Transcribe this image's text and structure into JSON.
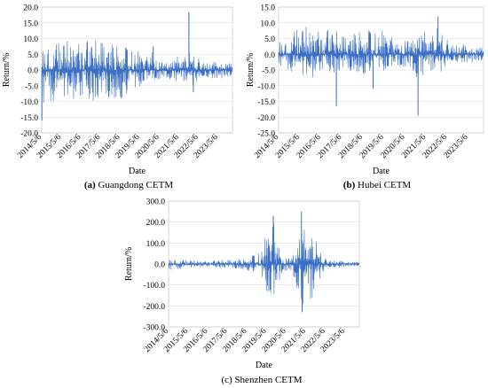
{
  "chart_data": [
    {
      "type": "line",
      "panel": "(a)",
      "caption_letter": "(a)",
      "caption_text": " Guangdong CETM",
      "xlabel": "Date",
      "ylabel": "Return/%",
      "x_ticks": [
        "2014/5/6",
        "2015/5/6",
        "2016/5/6",
        "2017/5/6",
        "2018/5/6",
        "2019/5/6",
        "2020/5/6",
        "2021/5/6",
        "2022/5/6",
        "2023/5/6"
      ],
      "y_ticks": [
        "20.0",
        "15.0",
        "10.0",
        "5.0",
        "0.0",
        "-5.0",
        "-10.0",
        "-15.0",
        "-20.0"
      ],
      "ylim": [
        -20,
        20
      ],
      "xlim": [
        "2014/5/6",
        "2024/1/31"
      ],
      "series_color": "#3a6fc4",
      "envelope": [
        {
          "x": "2014/5/6",
          "y": [
            -12,
            9
          ]
        },
        {
          "x": "2014/9/1",
          "y": [
            -10,
            9.5
          ]
        },
        {
          "x": "2015/1/1",
          "y": [
            -10,
            9.5
          ]
        },
        {
          "x": "2015/5/6",
          "y": [
            -10,
            9.5
          ]
        },
        {
          "x": "2016/1/1",
          "y": [
            -10,
            9.5
          ]
        },
        {
          "x": "2016/5/6",
          "y": [
            -10,
            9.5
          ]
        },
        {
          "x": "2017/1/1",
          "y": [
            -10,
            9.5
          ]
        },
        {
          "x": "2017/5/6",
          "y": [
            -10,
            9.5
          ]
        },
        {
          "x": "2018/1/1",
          "y": [
            -10,
            9.5
          ]
        },
        {
          "x": "2018/5/6",
          "y": [
            -10,
            9
          ]
        },
        {
          "x": "2019/1/1",
          "y": [
            -9,
            8
          ]
        },
        {
          "x": "2019/5/6",
          "y": [
            -6,
            6
          ]
        },
        {
          "x": "2019/9/1",
          "y": [
            -4,
            4
          ]
        },
        {
          "x": "2020/1/1",
          "y": [
            -3,
            7
          ]
        },
        {
          "x": "2020/5/6",
          "y": [
            -3,
            3
          ]
        },
        {
          "x": "2021/1/1",
          "y": [
            -3,
            4
          ]
        },
        {
          "x": "2021/5/6",
          "y": [
            -4,
            5
          ]
        },
        {
          "x": "2021/9/1",
          "y": [
            -4,
            6
          ]
        },
        {
          "x": "2022/1/1",
          "y": [
            -5,
            6
          ]
        },
        {
          "x": "2022/5/6",
          "y": [
            -4,
            4
          ]
        },
        {
          "x": "2023/1/1",
          "y": [
            -3,
            3
          ]
        },
        {
          "x": "2023/5/6",
          "y": [
            -3,
            3
          ]
        },
        {
          "x": "2024/1/31",
          "y": [
            -2,
            2
          ]
        }
      ],
      "spikes": [
        {
          "x": "2014/5/10",
          "y": -16
        },
        {
          "x": "2020/1/15",
          "y": 7.5
        },
        {
          "x": "2021/11/10",
          "y": 18.5
        },
        {
          "x": "2022/2/1",
          "y": -7
        }
      ]
    },
    {
      "type": "line",
      "panel": "(b)",
      "caption_letter": "(b)",
      "caption_text": " Hubei CETM",
      "xlabel": "Date",
      "ylabel": "Return/%",
      "x_ticks": [
        "2014/5/6",
        "2015/5/6",
        "2016/5/6",
        "2017/5/6",
        "2018/5/6",
        "2019/5/6",
        "2020/5/6",
        "2021/5/6",
        "2022/5/6",
        "2023/5/6"
      ],
      "y_ticks": [
        "15.0",
        "10.0",
        "5.0",
        "0.0",
        "-5.0",
        "-10.0",
        "-15.0",
        "-20.0",
        "-25.0"
      ],
      "ylim": [
        -25,
        15
      ],
      "xlim": [
        "2014/5/6",
        "2024/1/31"
      ],
      "series_color": "#3a6fc4",
      "envelope": [
        {
          "x": "2014/5/6",
          "y": [
            -4,
            6
          ]
        },
        {
          "x": "2014/9/1",
          "y": [
            -4,
            5
          ]
        },
        {
          "x": "2015/1/1",
          "y": [
            -6,
            8
          ]
        },
        {
          "x": "2015/5/6",
          "y": [
            -8,
            9
          ]
        },
        {
          "x": "2016/1/1",
          "y": [
            -8,
            9
          ]
        },
        {
          "x": "2016/5/6",
          "y": [
            -6,
            8
          ]
        },
        {
          "x": "2017/1/1",
          "y": [
            -6,
            8
          ]
        },
        {
          "x": "2017/5/6",
          "y": [
            -6,
            6
          ]
        },
        {
          "x": "2018/1/1",
          "y": [
            -6,
            8
          ]
        },
        {
          "x": "2018/5/6",
          "y": [
            -7,
            9
          ]
        },
        {
          "x": "2019/1/1",
          "y": [
            -6,
            9
          ]
        },
        {
          "x": "2019/5/6",
          "y": [
            -6,
            8
          ]
        },
        {
          "x": "2020/1/1",
          "y": [
            -4,
            4
          ]
        },
        {
          "x": "2020/5/6",
          "y": [
            -4,
            5
          ]
        },
        {
          "x": "2021/1/1",
          "y": [
            -8,
            9
          ]
        },
        {
          "x": "2021/5/6",
          "y": [
            -6,
            8
          ]
        },
        {
          "x": "2022/1/1",
          "y": [
            -6,
            9
          ]
        },
        {
          "x": "2022/5/6",
          "y": [
            -4,
            5
          ]
        },
        {
          "x": "2023/1/1",
          "y": [
            -3,
            4
          ]
        },
        {
          "x": "2023/5/6",
          "y": [
            -3,
            3
          ]
        },
        {
          "x": "2024/1/31",
          "y": [
            -2,
            2
          ]
        }
      ],
      "spikes": [
        {
          "x": "2017/2/1",
          "y": -16.5
        },
        {
          "x": "2020/12/20",
          "y": -19.5
        },
        {
          "x": "2021/12/1",
          "y": 12
        },
        {
          "x": "2018/11/1",
          "y": -11
        }
      ]
    },
    {
      "type": "line",
      "panel": "(c)",
      "caption_letter": "",
      "caption_text": "(c) Shenzhen CETM",
      "xlabel": "Date",
      "ylabel": "Return/%",
      "x_ticks": [
        "2014/5/6",
        "2015/5/6",
        "2016/5/6",
        "2017/5/6",
        "2018/5/6",
        "2019/5/6",
        "2020/5/6",
        "2021/5/6",
        "2022/5/6",
        "2023/5/6"
      ],
      "y_ticks": [
        "300.0",
        "200.0",
        "100.0",
        "0.0",
        "-100.0",
        "-200.0",
        "-300.0"
      ],
      "ylim": [
        -300,
        300
      ],
      "xlim": [
        "2014/5/6",
        "2024/1/31"
      ],
      "series_color": "#3a6fc4",
      "envelope": [
        {
          "x": "2014/5/6",
          "y": [
            -30,
            30
          ]
        },
        {
          "x": "2015/5/6",
          "y": [
            -20,
            20
          ]
        },
        {
          "x": "2016/5/6",
          "y": [
            -15,
            15
          ]
        },
        {
          "x": "2017/5/6",
          "y": [
            -20,
            20
          ]
        },
        {
          "x": "2018/5/6",
          "y": [
            -30,
            30
          ]
        },
        {
          "x": "2019/1/1",
          "y": [
            -60,
            70
          ]
        },
        {
          "x": "2019/5/6",
          "y": [
            -150,
            150
          ]
        },
        {
          "x": "2019/9/1",
          "y": [
            -210,
            230
          ]
        },
        {
          "x": "2019/12/1",
          "y": [
            -120,
            120
          ]
        },
        {
          "x": "2020/3/1",
          "y": [
            -30,
            30
          ]
        },
        {
          "x": "2020/8/1",
          "y": [
            -40,
            40
          ]
        },
        {
          "x": "2020/12/1",
          "y": [
            -120,
            120
          ]
        },
        {
          "x": "2021/2/1",
          "y": [
            -230,
            250
          ]
        },
        {
          "x": "2021/5/6",
          "y": [
            -160,
            160
          ]
        },
        {
          "x": "2021/9/1",
          "y": [
            -200,
            180
          ]
        },
        {
          "x": "2022/1/1",
          "y": [
            -80,
            80
          ]
        },
        {
          "x": "2022/5/6",
          "y": [
            -30,
            30
          ]
        },
        {
          "x": "2023/5/6",
          "y": [
            -15,
            15
          ]
        },
        {
          "x": "2024/1/31",
          "y": [
            -10,
            10
          ]
        }
      ],
      "spikes": [
        {
          "x": "2021/2/15",
          "y": 250
        },
        {
          "x": "2021/3/1",
          "y": -230
        },
        {
          "x": "2019/9/10",
          "y": 230
        }
      ]
    }
  ]
}
